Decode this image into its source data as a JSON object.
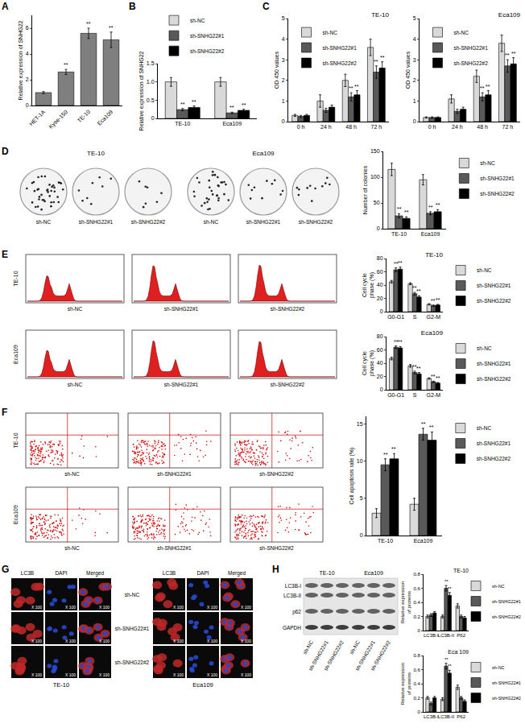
{
  "chart_data": [
    {
      "panel": "A",
      "type": "bar",
      "categories": [
        "HET-1A",
        "Kyse-150",
        "TE-10",
        "Eca109"
      ],
      "values": [
        1,
        2.6,
        5.6,
        5.1
      ],
      "errors": [
        0.08,
        0.2,
        0.4,
        0.6
      ],
      "marks": [
        null,
        "**",
        "**",
        "**"
      ],
      "color": "#7f7f7f",
      "ylabel": "Relative expression of SNHG22",
      "ylim": [
        0,
        7
      ],
      "yticks": [
        0,
        2,
        4,
        6
      ]
    },
    {
      "panel": "B",
      "type": "bar",
      "categories": [
        "TE-10",
        "Eca109"
      ],
      "series": [
        {
          "name": "sh-NC",
          "color": "#d9d9d9",
          "values": [
            1,
            1
          ],
          "errors": [
            0.12,
            0.12
          ]
        },
        {
          "name": "sh-SNHG22#1",
          "color": "#595959",
          "values": [
            0.24,
            0.15
          ],
          "errors": [
            0.03,
            0.02
          ],
          "marks": [
            "**",
            "**"
          ]
        },
        {
          "name": "sh-SNHG22#2",
          "color": "#000000",
          "values": [
            0.3,
            0.22
          ],
          "errors": [
            0.04,
            0.03
          ],
          "marks": [
            "**",
            "**"
          ]
        }
      ],
      "ylabel": "Relative expression of SNHG22",
      "ylim": [
        0,
        1.5
      ],
      "yticks": [
        0,
        0.5,
        {
          "value": 1,
          "label": "1.0"
        },
        1.5
      ],
      "legend": "top"
    },
    {
      "panel": "C",
      "type": "bar",
      "title": "TE-10",
      "categories": [
        "0 h",
        "24 h",
        "48 h",
        "72 h"
      ],
      "series": [
        {
          "name": "sh-NC",
          "color": "#d9d9d9",
          "values": [
            0.3,
            1.0,
            2.0,
            3.6
          ],
          "errors": [
            0.05,
            0.3,
            0.3,
            0.4
          ]
        },
        {
          "name": "sh-SNHG22#1",
          "color": "#595959",
          "values": [
            0.25,
            0.55,
            1.2,
            2.4
          ],
          "errors": [
            0.05,
            0.1,
            0.2,
            0.3
          ],
          "marks": [
            null,
            null,
            "**",
            "**"
          ]
        },
        {
          "name": "sh-SNHG22#2",
          "color": "#000000",
          "values": [
            0.3,
            0.7,
            1.3,
            2.6
          ],
          "errors": [
            0.05,
            0.1,
            0.2,
            0.3
          ],
          "marks": [
            null,
            null,
            "**",
            "**"
          ]
        }
      ],
      "ylabel": "OD 450 values",
      "ylim": [
        0,
        5
      ],
      "yticks": [
        0,
        1,
        2,
        3,
        4,
        5
      ],
      "legend": "top left"
    },
    {
      "type": "bar",
      "title": "Eca109",
      "categories": [
        "0 h",
        "24 h",
        "48 h",
        "72 h"
      ],
      "series": [
        {
          "name": "sh-NC",
          "color": "#d9d9d9",
          "values": [
            0.2,
            1.1,
            2.2,
            3.8
          ],
          "errors": [
            0.03,
            0.2,
            0.3,
            0.4
          ]
        },
        {
          "name": "sh-SNHG22#1",
          "color": "#595959",
          "values": [
            0.2,
            0.5,
            1.2,
            2.7
          ],
          "errors": [
            0.03,
            0.1,
            0.2,
            0.3
          ],
          "marks": [
            null,
            null,
            "**",
            "**"
          ]
        },
        {
          "name": "sh-SNHG22#2",
          "color": "#000000",
          "values": [
            0.2,
            0.6,
            1.3,
            2.8
          ],
          "errors": [
            0.03,
            0.1,
            0.2,
            0.3
          ],
          "marks": [
            null,
            null,
            "**",
            "**"
          ]
        }
      ],
      "ylabel": "OD 450 values",
      "ylim": [
        0,
        5
      ],
      "yticks": [
        0,
        1,
        2,
        3,
        4,
        5
      ],
      "legend": "top left"
    },
    {
      "type": "bar",
      "categories": [
        "TE-10",
        "Eca109"
      ],
      "series": [
        {
          "name": "sh-NC",
          "color": "#d9d9d9",
          "values": [
            115,
            95
          ],
          "errors": [
            12,
            10
          ]
        },
        {
          "name": "sh-SNHG22#1",
          "color": "#595959",
          "values": [
            25,
            30
          ],
          "errors": [
            4,
            3
          ],
          "marks": [
            "**",
            "**"
          ]
        },
        {
          "name": "sh-SNHG22#2",
          "color": "#000000",
          "values": [
            20,
            33
          ],
          "errors": [
            3,
            4
          ],
          "marks": [
            "**",
            "**"
          ]
        }
      ],
      "ylabel": "Number of colonies",
      "ylim": [
        0,
        150
      ],
      "yticks": [
        0,
        50,
        100,
        150
      ],
      "legend": "right"
    },
    {
      "type": "bar",
      "title": "TE-10",
      "categories": [
        "G0-G1",
        "S",
        "G2-M"
      ],
      "series": [
        {
          "name": "sh-NC",
          "color": "#d9d9d9",
          "values": [
            45,
            42,
            11
          ],
          "errors": [
            2,
            1.5,
            1
          ]
        },
        {
          "name": "sh-SNHG22#1",
          "color": "#595959",
          "values": [
            63,
            27,
            9
          ],
          "errors": [
            3,
            2,
            1
          ],
          "marks": [
            "**",
            "**",
            "**"
          ]
        },
        {
          "name": "sh-SNHG22#2",
          "color": "#000000",
          "values": [
            64,
            22,
            10
          ],
          "errors": [
            3,
            2,
            1
          ],
          "marks": [
            "**",
            "**",
            "**"
          ]
        }
      ],
      "ylabel": "Cell cycle phase (%)",
      "ylim": [
        0,
        80
      ],
      "yticks": [
        0,
        20,
        40,
        60,
        80
      ],
      "legend": "right"
    },
    {
      "type": "bar",
      "title": "Eca109",
      "categories": [
        "G0-G1",
        "S",
        "G2-M"
      ],
      "series": [
        {
          "name": "sh-NC",
          "color": "#d9d9d9",
          "values": [
            47,
            36,
            17
          ],
          "errors": [
            2,
            2,
            1
          ]
        },
        {
          "name": "sh-SNHG22#1",
          "color": "#595959",
          "values": [
            64,
            26,
            12
          ],
          "errors": [
            2,
            2,
            1
          ],
          "marks": [
            "**",
            "**",
            "**"
          ]
        },
        {
          "name": "sh-SNHG22#2",
          "color": "#000000",
          "values": [
            63,
            24,
            10
          ],
          "errors": [
            2,
            2,
            1
          ],
          "marks": [
            "**",
            "**",
            "**"
          ]
        }
      ],
      "ylabel": "Cell cycle phase (%)",
      "ylim": [
        0,
        80
      ],
      "yticks": [
        0,
        20,
        40,
        60,
        80
      ],
      "legend": "right"
    },
    {
      "type": "bar",
      "categories": [
        "TE-10",
        "Eca109"
      ],
      "series": [
        {
          "name": "sh-NC",
          "color": "#d9d9d9",
          "values": [
            3,
            4.2
          ],
          "errors": [
            0.6,
            0.8
          ]
        },
        {
          "name": "sh-SNHG22#1",
          "color": "#595959",
          "values": [
            9.5,
            13.6
          ],
          "errors": [
            0.8,
            0.8
          ],
          "marks": [
            "**",
            "**"
          ]
        },
        {
          "name": "sh-SNHG22#2",
          "color": "#000000",
          "values": [
            10.3,
            12.8
          ],
          "errors": [
            0.7,
            1.1
          ],
          "marks": [
            "**",
            "**"
          ]
        }
      ],
      "ylabel": "Cell apoptosis rate (%)",
      "ylim": [
        0,
        16
      ],
      "yticks": [
        0,
        5,
        10,
        15
      ],
      "legend": "right"
    },
    {
      "type": "bar",
      "title": "TE-10",
      "categories": [
        "LC3B-I",
        "LC3B-II",
        "P62"
      ],
      "series": [
        {
          "name": "sh-NC",
          "color": "#d9d9d9",
          "values": [
            0.2,
            0.2,
            0.35
          ],
          "errors": [
            0.02,
            0.02,
            0.03
          ]
        },
        {
          "name": "sh-SNHG22#1",
          "color": "#595959",
          "values": [
            0.22,
            0.6,
            0.2
          ],
          "errors": [
            0.02,
            0.04,
            0.02
          ],
          "marks": [
            null,
            "**",
            null
          ]
        },
        {
          "name": "sh-SNHG22#2",
          "color": "#000000",
          "values": [
            0.25,
            0.5,
            0.18
          ],
          "errors": [
            0.02,
            0.04,
            0.02
          ],
          "marks": [
            null,
            "**",
            null
          ]
        }
      ],
      "ylabel": "Relative expression of proteins",
      "ylim": [
        0,
        0.8
      ],
      "yticks": [
        0,
        0.2,
        0.4,
        0.6,
        0.8
      ],
      "legend": "right"
    },
    {
      "type": "bar",
      "title": "Eca 109",
      "categories": [
        "LC3B-I",
        "LC3B-II",
        "P62"
      ],
      "series": [
        {
          "name": "sh-NC",
          "color": "#d9d9d9",
          "values": [
            0.2,
            0.18,
            0.35
          ],
          "errors": [
            0.02,
            0.02,
            0.03
          ]
        },
        {
          "name": "sh-SNHG22#1",
          "color": "#595959",
          "values": [
            0.12,
            0.65,
            0.2
          ],
          "errors": [
            0.02,
            0.04,
            0.02
          ],
          "marks": [
            null,
            "**",
            null
          ]
        },
        {
          "name": "sh-SNHG22#2",
          "color": "#000000",
          "values": [
            0.2,
            0.55,
            0.15
          ],
          "errors": [
            0.02,
            0.04,
            0.02
          ],
          "marks": [
            null,
            "**",
            null
          ]
        }
      ],
      "ylabel": "Relative expression of proteins",
      "ylim": [
        0,
        0.8
      ],
      "yticks": [
        0,
        0.2,
        0.4,
        0.6,
        0.8
      ],
      "legend": "right"
    }
  ],
  "images": {
    "D": {
      "panel": "D",
      "groups": [
        "TE-10",
        "Eca109"
      ],
      "labels": [
        "sh-NC",
        "sh-SNHG22#1",
        "sh-SNHG22#2"
      ]
    },
    "E": {
      "panel": "E",
      "rows": [
        "TE-10",
        "Eca109"
      ],
      "labels": [
        "sh-NC",
        "sh-SNHG22#1",
        "sh-SNHG22#2"
      ]
    },
    "F": {
      "panel": "F",
      "rows": [
        "TE-10",
        "Eca109"
      ],
      "labels": [
        "sh-NC",
        "sh-SNHG22#1",
        "sh-SNHG22#2"
      ]
    },
    "G": {
      "panel": "G",
      "groups": [
        "TE-10",
        "Eca109"
      ],
      "channels": [
        "LC3B",
        "DAPI",
        "Merged"
      ],
      "labels": [
        "sh-NC",
        "sh-SNHG22#1",
        "sh-SNHG22#2"
      ],
      "magnification": "X 100"
    },
    "H": {
      "panel": "H",
      "groups": [
        "TE-10",
        "Eca109"
      ],
      "bands": [
        "LC3B-I",
        "LC3B-II",
        "p62",
        "GAPDH"
      ],
      "labels": [
        "sh-NC",
        "sh-SNHG22#1",
        "sh-SNHG22#2"
      ]
    }
  }
}
